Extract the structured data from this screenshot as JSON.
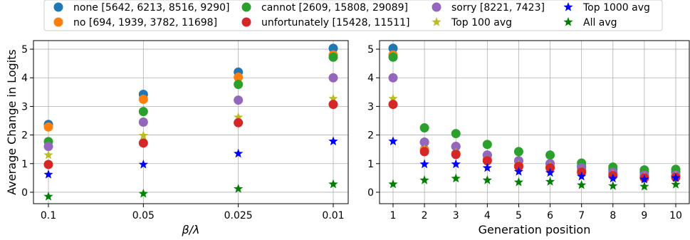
{
  "legend": {
    "placement": "top-center",
    "items": [
      {
        "label": "none [5642, 6213, 8516, 9290]",
        "marker": "circle",
        "color": "#1f77b4"
      },
      {
        "label": "no [694, 1939, 3782, 11698]",
        "marker": "circle",
        "color": "#ff7f0e"
      },
      {
        "label": "cannot [2609, 15808, 29089]",
        "marker": "circle",
        "color": "#2ca02c"
      },
      {
        "label": "unfortunately [15428, 11511]",
        "marker": "circle",
        "color": "#d62728"
      },
      {
        "label": "sorry [8221, 7423]",
        "marker": "circle",
        "color": "#9467bd"
      },
      {
        "label": "Top 100 avg",
        "marker": "star",
        "color": "#bcbd22"
      },
      {
        "label": "Top 1000 avg",
        "marker": "star",
        "color": "#0000ff"
      },
      {
        "label": "All avg",
        "marker": "star",
        "color": "#008000"
      }
    ]
  },
  "chart_data": [
    {
      "type": "scatter",
      "title": "",
      "xlabel": "β/λ",
      "ylabel": "Average Change in Logits",
      "categories": [
        "0.1",
        "0.05",
        "0.025",
        "0.01"
      ],
      "ylim": [
        -0.4,
        5.3
      ],
      "yticks": [
        0,
        1,
        2,
        3,
        4,
        5
      ],
      "grid": true,
      "series": [
        {
          "name": "none [5642, 6213, 8516, 9290]",
          "marker": "circle",
          "color": "#1f77b4",
          "values": [
            2.37,
            3.42,
            4.2,
            5.03
          ]
        },
        {
          "name": "no [694, 1939, 3782, 11698]",
          "marker": "circle",
          "color": "#ff7f0e",
          "values": [
            2.28,
            3.25,
            4.02,
            4.8
          ]
        },
        {
          "name": "cannot [2609, 15808, 29089]",
          "marker": "circle",
          "color": "#2ca02c",
          "values": [
            1.77,
            2.82,
            3.77,
            4.72
          ]
        },
        {
          "name": "sorry [8221, 7423]",
          "marker": "circle",
          "color": "#9467bd",
          "values": [
            1.6,
            2.45,
            3.22,
            4.0
          ]
        },
        {
          "name": "Top 100 avg",
          "marker": "star",
          "color": "#bcbd22",
          "values": [
            1.3,
            1.98,
            2.62,
            3.27
          ]
        },
        {
          "name": "unfortunately [15428, 11511]",
          "marker": "circle",
          "color": "#d62728",
          "values": [
            0.97,
            1.72,
            2.43,
            3.07
          ]
        },
        {
          "name": "Top 1000 avg",
          "marker": "star",
          "color": "#0000ff",
          "values": [
            0.62,
            0.97,
            1.35,
            1.78
          ]
        },
        {
          "name": "All avg",
          "marker": "star",
          "color": "#008000",
          "values": [
            -0.15,
            -0.05,
            0.12,
            0.28
          ]
        }
      ]
    },
    {
      "type": "scatter",
      "title": "",
      "xlabel": "Generation position",
      "ylabel": "",
      "categories": [
        "1",
        "2",
        "3",
        "4",
        "5",
        "6",
        "7",
        "8",
        "9",
        "10"
      ],
      "ylim": [
        -0.4,
        5.3
      ],
      "yticks": [
        0,
        1,
        2,
        3,
        4,
        5
      ],
      "grid": true,
      "series": [
        {
          "name": "none [5642, 6213, 8516, 9290]",
          "marker": "circle",
          "color": "#1f77b4",
          "values": [
            5.03,
            1.75,
            1.6,
            1.3,
            1.1,
            1.0,
            0.9,
            0.8,
            0.7,
            0.7
          ]
        },
        {
          "name": "no [694, 1939, 3782, 11698]",
          "marker": "circle",
          "color": "#ff7f0e",
          "values": [
            4.8,
            1.5,
            1.35,
            1.15,
            0.95,
            0.9,
            0.75,
            0.65,
            0.6,
            0.6
          ]
        },
        {
          "name": "cannot [2609, 15808, 29089]",
          "marker": "circle",
          "color": "#2ca02c",
          "values": [
            4.72,
            2.25,
            2.05,
            1.67,
            1.42,
            1.3,
            1.02,
            0.88,
            0.78,
            0.8
          ]
        },
        {
          "name": "sorry [8221, 7423]",
          "marker": "circle",
          "color": "#9467bd",
          "values": [
            4.0,
            1.75,
            1.6,
            1.3,
            1.1,
            1.0,
            0.85,
            0.7,
            0.6,
            0.6
          ]
        },
        {
          "name": "Top 100 avg",
          "marker": "star",
          "color": "#bcbd22",
          "values": [
            3.27,
            1.5,
            1.38,
            1.12,
            0.95,
            0.9,
            0.72,
            0.62,
            0.55,
            0.58
          ]
        },
        {
          "name": "unfortunately [15428, 11511]",
          "marker": "circle",
          "color": "#d62728",
          "values": [
            3.07,
            1.42,
            1.32,
            1.1,
            0.9,
            0.85,
            0.7,
            0.58,
            0.5,
            0.52
          ]
        },
        {
          "name": "Top 1000 avg",
          "marker": "star",
          "color": "#0000ff",
          "values": [
            1.78,
            0.98,
            0.98,
            0.85,
            0.72,
            0.68,
            0.55,
            0.48,
            0.45,
            0.5
          ]
        },
        {
          "name": "All avg",
          "marker": "star",
          "color": "#008000",
          "values": [
            0.28,
            0.42,
            0.48,
            0.42,
            0.35,
            0.37,
            0.25,
            0.22,
            0.2,
            0.27
          ]
        }
      ]
    }
  ]
}
